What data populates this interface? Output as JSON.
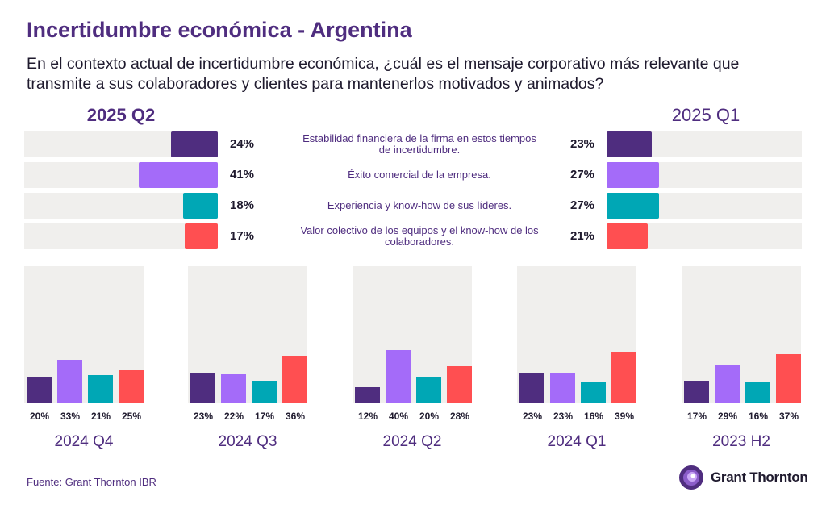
{
  "title": "Incertidumbre económica - Argentina",
  "question": "En el contexto actual de incertidumbre económica, ¿cuál es el mensaje corporativo más relevante que transmite a sus colaboradores y clientes para mantenerlos motivados y animados?",
  "source": "Fuente: Grant Thornton IBR",
  "brand": {
    "name": "Grant Thornton",
    "logo_icon": "grant-thornton-logo-icon"
  },
  "colors": {
    "accent": "#4f2d7f",
    "track": "#f0efed"
  },
  "chart_data": {
    "type": "bar",
    "categories": [
      "Estabilidad financiera de la firma en estos tiempos de incertidumbre.",
      "Éxito comercial de la empresa.",
      "Experiencia y know-how de sus líderes.",
      "Valor colectivo de los equipos y el know-how de los colaboradores."
    ],
    "category_colors": [
      "#4f2d7f",
      "#a46bf9",
      "#00a7b5",
      "#ff4f51"
    ],
    "main": [
      {
        "period": "2025 Q2",
        "values": [
          24,
          41,
          18,
          17
        ],
        "labels": [
          "24%",
          "41%",
          "18%",
          "17%"
        ]
      },
      {
        "period": "2025 Q1",
        "values": [
          23,
          27,
          27,
          21
        ],
        "labels": [
          "23%",
          "27%",
          "27%",
          "21%"
        ]
      }
    ],
    "history": [
      {
        "period": "2024 Q4",
        "values": [
          20,
          33,
          21,
          25
        ],
        "labels": [
          "20%",
          "33%",
          "21%",
          "25%"
        ]
      },
      {
        "period": "2024 Q3",
        "values": [
          23,
          22,
          17,
          36
        ],
        "labels": [
          "23%",
          "22%",
          "17%",
          "36%"
        ]
      },
      {
        "period": "2024 Q2",
        "values": [
          12,
          40,
          20,
          28
        ],
        "labels": [
          "12%",
          "40%",
          "20%",
          "28%"
        ]
      },
      {
        "period": "2024 Q1",
        "values": [
          23,
          23,
          16,
          39
        ],
        "labels": [
          "23%",
          "23%",
          "16%",
          "39%"
        ]
      },
      {
        "period": "2023 H2",
        "values": [
          17,
          29,
          16,
          37
        ],
        "labels": [
          "17%",
          "29%",
          "16%",
          "37%"
        ]
      }
    ]
  }
}
